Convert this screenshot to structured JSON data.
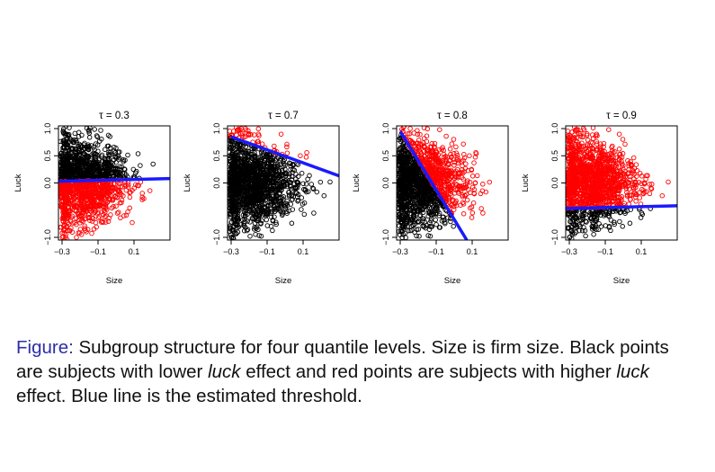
{
  "colors": {
    "low_luck_points": "#000000",
    "high_luck_points": "#ff0000",
    "threshold_line": "#1a1aff",
    "figure_label": "#2d2dab"
  },
  "chart_data": [
    {
      "type": "scatter",
      "title": "τ = 0.3",
      "xlabel": "Size",
      "ylabel": "Luck",
      "xlim": [
        -0.32,
        0.3
      ],
      "ylim": [
        -1.05,
        1.05
      ],
      "xticks": [
        -0.3,
        -0.1,
        0.1
      ],
      "xtick_labels": [
        "−0.3",
        "−0.1",
        "0.1"
      ],
      "yticks": [
        -1.0,
        0.0,
        0.5,
        1.0
      ],
      "ytick_labels": [
        "−1.0",
        "0.0",
        "0.5",
        "1.0"
      ],
      "series": [
        {
          "name": "lower luck effect",
          "color": "#000000",
          "region": "above threshold"
        },
        {
          "name": "higher luck effect",
          "color": "#ff0000",
          "region": "below threshold"
        }
      ],
      "threshold": {
        "x": [
          -0.32,
          0.3
        ],
        "y": [
          0.03,
          0.08
        ]
      }
    },
    {
      "type": "scatter",
      "title": "τ = 0.7",
      "xlabel": "Size",
      "ylabel": "Luck",
      "xlim": [
        -0.32,
        0.3
      ],
      "ylim": [
        -1.05,
        1.05
      ],
      "xticks": [
        -0.3,
        -0.1,
        0.1
      ],
      "xtick_labels": [
        "−0.3",
        "−0.1",
        "0.1"
      ],
      "yticks": [
        -1.0,
        0.0,
        0.5,
        1.0
      ],
      "ytick_labels": [
        "−1.0",
        "0.0",
        "0.5",
        "1.0"
      ],
      "series": [
        {
          "name": "lower luck effect",
          "color": "#000000",
          "region": "below threshold"
        },
        {
          "name": "higher luck effect",
          "color": "#ff0000",
          "region": "above threshold"
        }
      ],
      "threshold": {
        "x": [
          -0.3,
          0.3
        ],
        "y": [
          0.85,
          0.13
        ]
      }
    },
    {
      "type": "scatter",
      "title": "τ = 0.8",
      "xlabel": "Size",
      "ylabel": "Luck",
      "xlim": [
        -0.32,
        0.3
      ],
      "ylim": [
        -1.05,
        1.05
      ],
      "xticks": [
        -0.3,
        -0.1,
        0.1
      ],
      "xtick_labels": [
        "−0.3",
        "−0.1",
        "0.1"
      ],
      "yticks": [
        -1.0,
        0.0,
        0.5,
        1.0
      ],
      "ytick_labels": [
        "−1.0",
        "0.0",
        "0.5",
        "1.0"
      ],
      "series": [
        {
          "name": "lower luck effect",
          "color": "#000000",
          "region": "left of threshold"
        },
        {
          "name": "higher luck effect",
          "color": "#ff0000",
          "region": "right of threshold"
        }
      ],
      "threshold": {
        "x": [
          -0.3,
          0.07
        ],
        "y": [
          0.95,
          -1.05
        ]
      }
    },
    {
      "type": "scatter",
      "title": "τ = 0.9",
      "xlabel": "Size",
      "ylabel": "Luck",
      "xlim": [
        -0.32,
        0.3
      ],
      "ylim": [
        -1.05,
        1.05
      ],
      "xticks": [
        -0.3,
        -0.1,
        0.1
      ],
      "xtick_labels": [
        "−0.3",
        "−0.1",
        "0.1"
      ],
      "yticks": [
        -1.0,
        0.0,
        0.5,
        1.0
      ],
      "ytick_labels": [
        "−1.0",
        "0.0",
        "0.5",
        "1.0"
      ],
      "series": [
        {
          "name": "lower luck effect",
          "color": "#000000",
          "region": "below threshold"
        },
        {
          "name": "higher luck effect",
          "color": "#ff0000",
          "region": "above threshold"
        }
      ],
      "threshold": {
        "x": [
          -0.32,
          0.3
        ],
        "y": [
          -0.47,
          -0.42
        ]
      }
    }
  ],
  "caption": {
    "label": "Figure:",
    "text_1": " Subgroup structure for four quantile levels. Size is firm size. Black points are subjects with lower ",
    "em_1": "luck",
    "text_2": " effect and red points are subjects with higher ",
    "em_2": "luck",
    "text_3": " effect. Blue line is the estimated threshold."
  }
}
